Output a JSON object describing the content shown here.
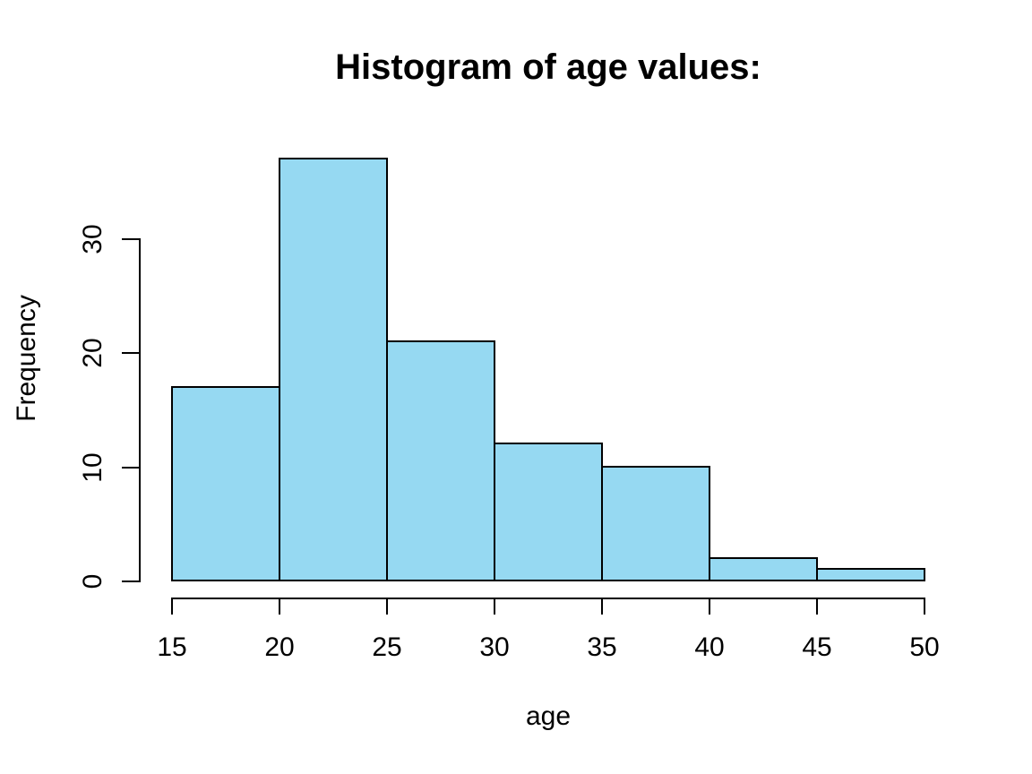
{
  "chart_data": {
    "type": "bar",
    "subtype": "histogram",
    "title": "Histogram of age values:",
    "xlabel": "age",
    "ylabel": "Frequency",
    "bin_edges": [
      15,
      20,
      25,
      30,
      35,
      40,
      45,
      50
    ],
    "counts": [
      17,
      37,
      21,
      12,
      10,
      2,
      1
    ],
    "x_ticks": [
      15,
      20,
      25,
      30,
      35,
      40,
      45,
      50
    ],
    "y_ticks": [
      0,
      10,
      20,
      30
    ],
    "xlim": [
      15,
      50
    ],
    "ylim": [
      0,
      37
    ],
    "grid": false,
    "legend": "none",
    "colors": {
      "bar_fill": "#96D9F2",
      "bar_stroke": "#000000",
      "axis": "#000000",
      "text": "#000000",
      "background": "#FFFFFF"
    }
  }
}
